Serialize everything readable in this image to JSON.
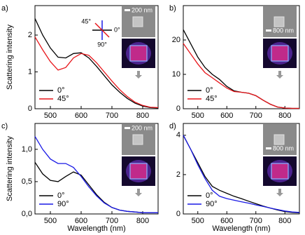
{
  "chart_data": [
    {
      "type": "line",
      "label": "a)",
      "ylabel": "Scattering intensity",
      "inset_labels": [
        "200 nm"
      ],
      "polarization_labels": [
        "45°",
        "0°",
        "90°"
      ],
      "x": [
        450,
        475,
        500,
        525,
        550,
        575,
        600,
        625,
        650,
        675,
        700,
        725,
        750,
        775,
        800,
        825,
        850
      ],
      "xlim": [
        450,
        850
      ],
      "xticks": [
        500,
        600,
        700,
        800
      ],
      "ylim": [
        0,
        2.8
      ],
      "yticks": [
        0,
        1,
        2
      ],
      "legend": "lower left",
      "series": [
        {
          "name": "0°",
          "color": "#000000",
          "values": [
            2.45,
            2.0,
            1.65,
            1.4,
            1.38,
            1.5,
            1.52,
            1.38,
            1.15,
            0.9,
            0.65,
            0.45,
            0.28,
            0.15,
            0.07,
            0.03,
            0.02
          ]
        },
        {
          "name": "45°",
          "color": "#e8161b",
          "values": [
            1.95,
            1.6,
            1.28,
            1.05,
            1.12,
            1.38,
            1.5,
            1.45,
            1.25,
            1.0,
            0.75,
            0.52,
            0.33,
            0.18,
            0.09,
            0.04,
            0.03
          ]
        }
      ]
    },
    {
      "type": "line",
      "label": "b)",
      "inset_labels": [
        "800 nm"
      ],
      "x": [
        450,
        475,
        500,
        525,
        550,
        575,
        600,
        625,
        650,
        675,
        700,
        725,
        750,
        775,
        800,
        825,
        850
      ],
      "xlim": [
        450,
        850
      ],
      "xticks": [
        500,
        600,
        700,
        800
      ],
      "ylim": [
        0,
        30
      ],
      "yticks": [
        0,
        10,
        20
      ],
      "legend": "lower left",
      "series": [
        {
          "name": "0°",
          "color": "#000000",
          "values": [
            23,
            19,
            15,
            12,
            10,
            8.5,
            6.5,
            5.2,
            4.8,
            4.5,
            3.8,
            2.5,
            1.3,
            0.5,
            0.2,
            0.1,
            0.1
          ]
        },
        {
          "name": "45°",
          "color": "#e8161b",
          "values": [
            19,
            16,
            13,
            10.5,
            9,
            7.5,
            6,
            5,
            4.8,
            4.5,
            3.8,
            2.5,
            1.3,
            0.5,
            0.2,
            0.1,
            0.1
          ]
        }
      ]
    },
    {
      "type": "line",
      "label": "c)",
      "ylabel": "Scattering intensity",
      "xlabel": "Wavelength (nm)",
      "inset_labels": [
        "200 nm"
      ],
      "x": [
        450,
        475,
        500,
        525,
        550,
        575,
        600,
        625,
        650,
        675,
        700,
        725,
        750,
        775,
        800,
        825,
        850
      ],
      "xlim": [
        450,
        850
      ],
      "xticks": [
        500,
        600,
        700,
        800
      ],
      "ylim": [
        0,
        1.4
      ],
      "yticks": [
        {
          "value": 0,
          "label": "0,0"
        },
        {
          "value": 0.5,
          "label": "0,5"
        },
        {
          "value": 1.0,
          "label": "1,0"
        }
      ],
      "legend": "lower left",
      "series": [
        {
          "name": "0°",
          "color": "#000000",
          "values": [
            0.8,
            0.62,
            0.52,
            0.5,
            0.58,
            0.65,
            0.6,
            0.45,
            0.3,
            0.18,
            0.1,
            0.06,
            0.04,
            0.03,
            0.02,
            0.02,
            0.02
          ]
        },
        {
          "name": "90°",
          "color": "#1a1ae6",
          "values": [
            1.2,
            1.0,
            0.85,
            0.78,
            0.78,
            0.72,
            0.58,
            0.42,
            0.28,
            0.17,
            0.1,
            0.06,
            0.04,
            0.03,
            0.02,
            0.02,
            0.02
          ]
        }
      ]
    },
    {
      "type": "line",
      "label": "d)",
      "xlabel": "Wavelength (nm)",
      "inset_labels": [
        "800 nm"
      ],
      "x": [
        450,
        475,
        500,
        525,
        550,
        575,
        600,
        625,
        650,
        675,
        700,
        725,
        750,
        775,
        800,
        825,
        850
      ],
      "xlim": [
        450,
        850
      ],
      "xticks": [
        500,
        600,
        700,
        800
      ],
      "ylim": [
        0,
        4.6
      ],
      "yticks": [
        0,
        2,
        4
      ],
      "legend": "lower left",
      "series": [
        {
          "name": "0°",
          "color": "#000000",
          "values": [
            4.0,
            3.3,
            2.6,
            1.9,
            1.4,
            1.2,
            1.05,
            0.9,
            0.78,
            0.65,
            0.52,
            0.4,
            0.3,
            0.2,
            0.12,
            0.08,
            0.06
          ]
        },
        {
          "name": "90°",
          "color": "#1a1ae6",
          "values": [
            4.0,
            3.3,
            2.5,
            1.8,
            1.2,
            0.9,
            0.78,
            0.7,
            0.62,
            0.55,
            0.46,
            0.38,
            0.3,
            0.22,
            0.15,
            0.1,
            0.08
          ]
        }
      ]
    }
  ]
}
